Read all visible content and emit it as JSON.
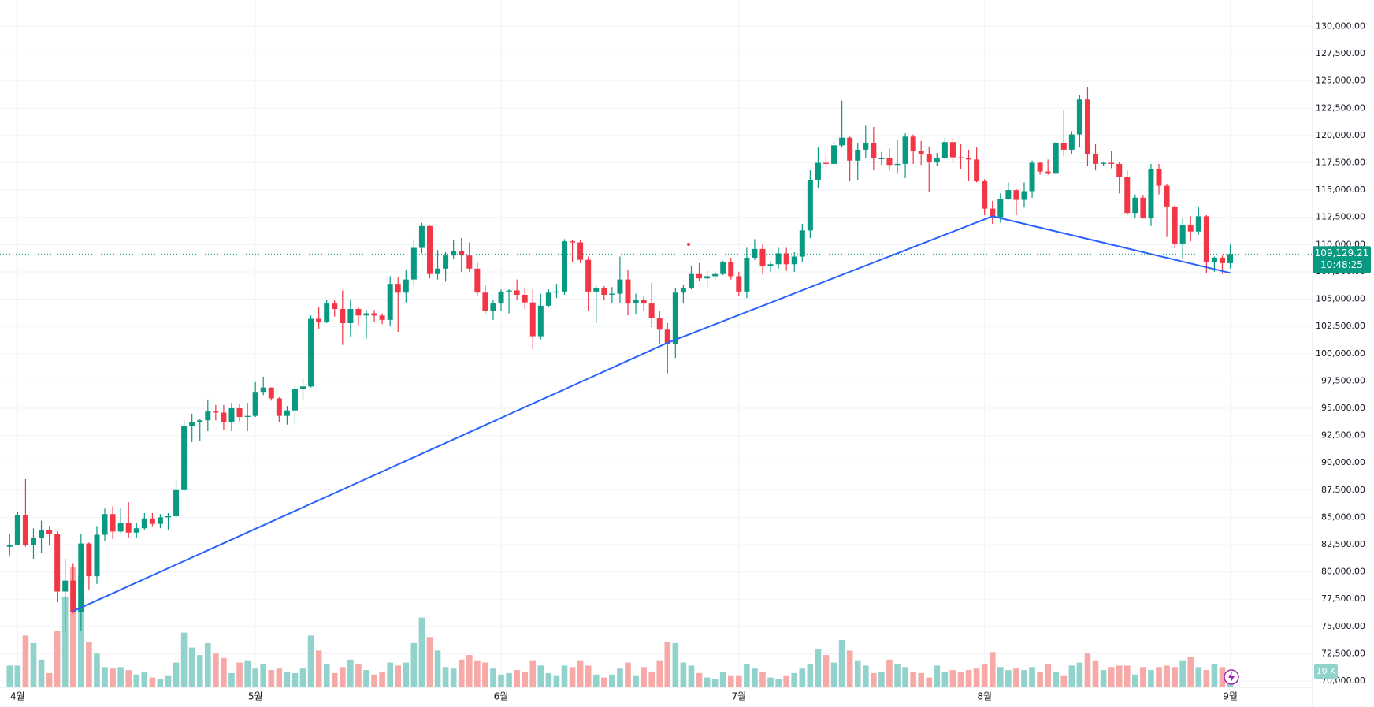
{
  "chart_data": {
    "type": "candlestick",
    "up_color": "#089981",
    "down_color": "#f23645",
    "volume_up_color": "#92d2cc",
    "volume_down_color": "#f7a9a7",
    "categories": [
      null,
      "4월",
      null,
      null,
      null,
      null,
      null,
      null,
      null,
      null,
      null,
      null,
      null,
      null,
      null,
      null,
      null,
      null,
      null,
      null,
      null,
      null,
      null,
      null,
      null,
      null,
      null,
      null,
      null,
      null,
      null,
      "5월",
      null,
      null,
      null,
      null,
      null,
      null,
      null,
      null,
      null,
      null,
      null,
      null,
      null,
      null,
      null,
      null,
      null,
      null,
      null,
      null,
      null,
      null,
      null,
      null,
      null,
      null,
      null,
      null,
      null,
      null,
      "6월",
      null,
      null,
      null,
      null,
      null,
      null,
      null,
      null,
      null,
      null,
      null,
      null,
      null,
      null,
      null,
      null,
      null,
      null,
      null,
      null,
      null,
      null,
      null,
      null,
      null,
      null,
      null,
      null,
      null,
      "7월",
      null,
      null,
      null,
      null,
      null,
      null,
      null,
      null,
      null,
      null,
      null,
      null,
      null,
      null,
      null,
      null,
      null,
      null,
      null,
      null,
      null,
      null,
      null,
      null,
      null,
      null,
      null,
      null,
      null,
      null,
      "8월",
      null,
      null,
      null,
      null,
      null,
      null,
      null,
      null,
      null,
      null,
      null,
      null,
      null,
      null,
      null,
      null,
      null,
      null,
      null,
      null,
      null,
      null,
      null,
      null,
      null,
      null,
      null,
      null,
      null,
      null,
      "9월"
    ],
    "open": [
      82300,
      82500,
      85200,
      82500,
      83100,
      83800,
      83500,
      78200,
      79200,
      76300,
      82600,
      79600,
      83400,
      85300,
      83700,
      84500,
      83600,
      84000,
      84900,
      84400,
      85000,
      85100,
      87500,
      93400,
      93700,
      93900,
      94700,
      94600,
      93700,
      95000,
      94200,
      94300,
      96500,
      96900,
      95900,
      94300,
      94800,
      96800,
      97000,
      103200,
      102900,
      104600,
      104100,
      102800,
      104100,
      103500,
      103700,
      103500,
      103100,
      106400,
      105600,
      106800,
      109700,
      111700,
      107300,
      107800,
      109000,
      109400,
      109000,
      107800,
      105600,
      103900,
      104600,
      105700,
      105800,
      105400,
      104700,
      101600,
      104400,
      105600,
      105700,
      110300,
      110200,
      108600,
      105700,
      106000,
      105400,
      105500,
      106800,
      104600,
      104900,
      104600,
      103300,
      102200,
      100900,
      105600,
      106000,
      107300,
      106900,
      107100,
      107300,
      108400,
      107100,
      105700,
      108800,
      109600,
      108000,
      108200,
      109200,
      108200,
      108900,
      111300,
      115900,
      117500,
      117400,
      119100,
      119800,
      117700,
      118700,
      119300,
      117900,
      117900,
      117300,
      117400,
      119900,
      118600,
      118300,
      117600,
      117900,
      119400,
      118000,
      117900,
      117800,
      115800,
      113300,
      112500,
      114200,
      115000,
      114100,
      114900,
      117500,
      116700,
      116500,
      119300,
      118700,
      120100,
      123300,
      118300,
      117400,
      117500,
      117400,
      116200,
      112900,
      114300,
      112400,
      116900,
      115400,
      113500,
      110100,
      111800,
      111200,
      112600,
      108400,
      108800,
      108300
    ],
    "high": [
      83500,
      85500,
      88500,
      84000,
      84700,
      84200,
      83700,
      81200,
      80800,
      83500,
      82700,
      84200,
      85800,
      86000,
      85800,
      86400,
      84500,
      85400,
      85400,
      85300,
      85400,
      88400,
      93900,
      94500,
      94000,
      95800,
      95300,
      95300,
      95500,
      95400,
      95500,
      97400,
      97900,
      96900,
      96000,
      95200,
      97000,
      97700,
      103500,
      104300,
      104900,
      104900,
      105800,
      105000,
      104300,
      104000,
      104000,
      103700,
      107100,
      107000,
      107700,
      110500,
      112000,
      111800,
      109500,
      109300,
      110400,
      110600,
      110200,
      108400,
      106300,
      104900,
      105900,
      105900,
      106800,
      106000,
      105900,
      105500,
      105900,
      106400,
      110500,
      110400,
      110400,
      108900,
      106200,
      106200,
      106100,
      108900,
      107700,
      105500,
      105300,
      106500,
      103900,
      102800,
      106000,
      106300,
      108000,
      108300,
      107700,
      107500,
      108500,
      108800,
      107500,
      109700,
      110500,
      110000,
      108400,
      109700,
      109700,
      109300,
      111900,
      116800,
      118900,
      118200,
      119500,
      123200,
      119900,
      119300,
      120900,
      120800,
      118500,
      118800,
      119600,
      120200,
      120100,
      119500,
      119000,
      118400,
      119800,
      119800,
      119200,
      118700,
      118900,
      116000,
      114000,
      114700,
      115700,
      115100,
      115700,
      117700,
      117600,
      117800,
      119400,
      122300,
      120400,
      123700,
      124400,
      119200,
      117600,
      118600,
      117600,
      116800,
      114600,
      114500,
      117400,
      117400,
      115600,
      113600,
      112400,
      112600,
      113500,
      112700,
      108900,
      109000,
      110000
    ],
    "low": [
      81500,
      82400,
      82300,
      81200,
      81700,
      82400,
      77200,
      74500,
      76200,
      74600,
      78400,
      78900,
      82800,
      83000,
      83600,
      83100,
      83100,
      83800,
      84200,
      84000,
      83800,
      85000,
      87400,
      91900,
      92000,
      92900,
      93900,
      93000,
      92900,
      93800,
      92900,
      94200,
      96200,
      95700,
      93700,
      93500,
      93500,
      95800,
      96900,
      102300,
      102800,
      103400,
      100800,
      101500,
      102600,
      101400,
      102900,
      102700,
      102500,
      102000,
      104700,
      106200,
      109200,
      106900,
      106800,
      106600,
      108700,
      107500,
      107500,
      105300,
      103700,
      103100,
      103900,
      103700,
      104900,
      104100,
      100400,
      101300,
      104300,
      105100,
      105400,
      108400,
      108300,
      103900,
      102800,
      104900,
      104600,
      104600,
      103500,
      103600,
      103900,
      102400,
      100900,
      98200,
      99600,
      104600,
      105900,
      106700,
      106100,
      106800,
      107200,
      106800,
      105300,
      105100,
      108600,
      107300,
      107500,
      107800,
      107600,
      107500,
      108400,
      110600,
      115200,
      117100,
      117300,
      118900,
      115800,
      115900,
      117900,
      116800,
      117300,
      116800,
      116500,
      116100,
      117400,
      117300,
      114800,
      117200,
      117800,
      117500,
      116900,
      115800,
      115700,
      112700,
      111900,
      112000,
      114100,
      112700,
      113400,
      114300,
      116400,
      116400,
      116500,
      118100,
      118300,
      118900,
      117200,
      116800,
      117200,
      117000,
      114700,
      112700,
      112400,
      112400,
      111700,
      114600,
      110700,
      109700,
      108700,
      110300,
      110900,
      107400,
      107500,
      107300,
      107800
    ],
    "close": [
      82500,
      85200,
      82500,
      83100,
      83800,
      83500,
      78200,
      79200,
      76300,
      82600,
      79600,
      83400,
      85300,
      83700,
      84500,
      83600,
      84000,
      84900,
      84400,
      85000,
      85100,
      87500,
      93400,
      93700,
      93900,
      94700,
      94600,
      93700,
      95000,
      94200,
      94300,
      96500,
      96900,
      95900,
      94300,
      94800,
      96800,
      97000,
      103200,
      102900,
      104600,
      104100,
      102800,
      104100,
      103500,
      103700,
      103500,
      103100,
      106400,
      105600,
      106800,
      109700,
      111700,
      107300,
      107800,
      109000,
      109400,
      109000,
      107800,
      105600,
      103900,
      104600,
      105700,
      105800,
      105400,
      104700,
      101600,
      104400,
      105600,
      105700,
      110300,
      110200,
      108600,
      105700,
      106000,
      105400,
      105500,
      106800,
      104600,
      104900,
      104600,
      103300,
      102200,
      100900,
      105600,
      106000,
      107300,
      106900,
      107100,
      107300,
      108400,
      107100,
      105700,
      108800,
      109600,
      108000,
      108200,
      109200,
      108200,
      108900,
      111300,
      115900,
      117500,
      117400,
      119100,
      119800,
      117700,
      118700,
      119300,
      117900,
      117900,
      117300,
      117400,
      119900,
      118600,
      118300,
      117600,
      117900,
      119400,
      118000,
      117900,
      117800,
      115800,
      113300,
      112500,
      114200,
      115000,
      114100,
      114900,
      117500,
      116700,
      116500,
      119300,
      118700,
      120100,
      123300,
      118300,
      117400,
      117500,
      117400,
      116200,
      112900,
      114300,
      112400,
      116900,
      115400,
      113500,
      110100,
      111800,
      111200,
      112600,
      108400,
      108800,
      108300,
      109129.21
    ],
    "volume": [
      14,
      14,
      34,
      29,
      18,
      9,
      37,
      60,
      80,
      75,
      30,
      22,
      13,
      12,
      13,
      11,
      8,
      10,
      6,
      5,
      7,
      16,
      36,
      26,
      21,
      29,
      22,
      19,
      9,
      16,
      17,
      12,
      15,
      11,
      12,
      10,
      9,
      12,
      34,
      24,
      15,
      9,
      13,
      18,
      15,
      11,
      8,
      10,
      16,
      14,
      16,
      29,
      46,
      33,
      24,
      13,
      12,
      18,
      21,
      17,
      16,
      12,
      8,
      9,
      11,
      10,
      17,
      14,
      9,
      7,
      14,
      13,
      17,
      14,
      8,
      6,
      8,
      12,
      16,
      7,
      13,
      10,
      17,
      30,
      29,
      16,
      14,
      9,
      6,
      5,
      10,
      7,
      7,
      15,
      12,
      10,
      6,
      5,
      7,
      9,
      12,
      15,
      25,
      21,
      16,
      31,
      24,
      17,
      14,
      9,
      10,
      18,
      15,
      13,
      10,
      9,
      6,
      14,
      10,
      11,
      10,
      11,
      12,
      15,
      23,
      13,
      11,
      12,
      11,
      13,
      10,
      15,
      10,
      7,
      14,
      16,
      22,
      17,
      11,
      13,
      14,
      14,
      8,
      13,
      11,
      13,
      14,
      13,
      17,
      20,
      13,
      11,
      15,
      13,
      9
    ],
    "vlim": [
      0,
      100
    ],
    "vticks": [
      {
        "value": 10,
        "label": "10 K"
      }
    ],
    "ylim": [
      70000,
      130000
    ],
    "yticks": [
      {
        "value": 70000,
        "label": "70,000.00"
      },
      {
        "value": 72500,
        "label": "72,500.00"
      },
      {
        "value": 75000,
        "label": "75,000.00"
      },
      {
        "value": 77500,
        "label": "77,500.00"
      },
      {
        "value": 80000,
        "label": "80,000.00"
      },
      {
        "value": 82500,
        "label": "82,500.00"
      },
      {
        "value": 85000,
        "label": "85,000.00"
      },
      {
        "value": 87500,
        "label": "87,500.00"
      },
      {
        "value": 90000,
        "label": "90,000.00"
      },
      {
        "value": 92500,
        "label": "92,500.00"
      },
      {
        "value": 95000,
        "label": "95,000.00"
      },
      {
        "value": 97500,
        "label": "97,500.00"
      },
      {
        "value": 100000,
        "label": "100,000.00"
      },
      {
        "value": 102500,
        "label": "102,500.00"
      },
      {
        "value": 105000,
        "label": "105,000.00"
      },
      {
        "value": 107500,
        "label": "107,500.00"
      },
      {
        "value": 110000,
        "label": "110,000.00"
      },
      {
        "value": 112500,
        "label": "112,500.00"
      },
      {
        "value": 115000,
        "label": "115,000.00"
      },
      {
        "value": 117500,
        "label": "117,500.00"
      },
      {
        "value": 120000,
        "label": "120,000.00"
      },
      {
        "value": 122500,
        "label": "122,500.00"
      },
      {
        "value": 125000,
        "label": "125,000.00"
      },
      {
        "value": 127500,
        "label": "127,500.00"
      },
      {
        "value": 130000,
        "label": "130,000.00"
      }
    ],
    "grid": true,
    "last_price": {
      "value": 109129.21,
      "label": "109,129.21"
    },
    "countdown": "10:48:25",
    "trendline": {
      "color": "#2962ff",
      "index": [
        8,
        83,
        124,
        154
      ],
      "price": [
        76400,
        101000,
        112600,
        107400
      ]
    }
  }
}
